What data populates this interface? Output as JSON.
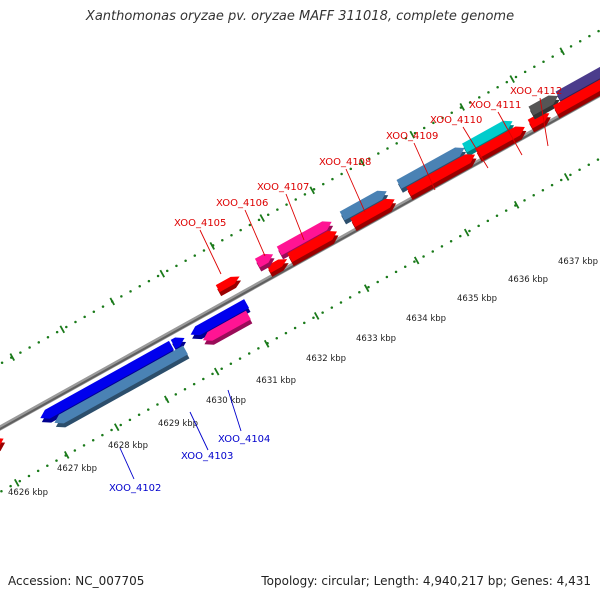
{
  "title": "Xanthomonas oryzae pv. oryzae MAFF 311018, complete genome",
  "footer": {
    "accession": "Accession: NC_007705",
    "summary": "Topology: circular; Length: 4,940,217 bp; Genes: 4,431"
  },
  "colors": {
    "forward_label": "#dd0000",
    "reverse_label": "#0000cc",
    "ticks": "#1a7a1a",
    "backbone": "#888888",
    "red": "#ff0000",
    "blue": "#0000ee",
    "steel": "#4a82b4",
    "magenta": "#ff1493",
    "cyan": "#00cccc",
    "gray": "#555555",
    "slate": "#4b3c8c"
  },
  "kbp_labels": [
    "4626 kbp",
    "4627 kbp",
    "4628 kbp",
    "4629 kbp",
    "4630 kbp",
    "4631 kbp",
    "4632 kbp",
    "4633 kbp",
    "4634 kbp",
    "4635 kbp",
    "4636 kbp",
    "4637 kbp"
  ],
  "genes": [
    {
      "name": "XOO_4102",
      "strand": "reverse",
      "color": "steel"
    },
    {
      "name": "XOO_4103",
      "strand": "reverse",
      "color": "magenta"
    },
    {
      "name": "XOO_4104",
      "strand": "reverse",
      "color": "blue"
    },
    {
      "name": "XOO_4105",
      "strand": "forward",
      "color": "red"
    },
    {
      "name": "XOO_4106",
      "strand": "forward",
      "color": "magenta"
    },
    {
      "name": "XOO_4107",
      "strand": "forward",
      "color": "magenta"
    },
    {
      "name": "XOO_4108",
      "strand": "forward",
      "color": "steel"
    },
    {
      "name": "XOO_4109",
      "strand": "forward",
      "color": "steel"
    },
    {
      "name": "XOO_4110",
      "strand": "forward",
      "color": "cyan"
    },
    {
      "name": "XOO_4111",
      "strand": "forward",
      "color": "red"
    },
    {
      "name": "XOO_4112",
      "strand": "forward",
      "color": "gray"
    }
  ]
}
